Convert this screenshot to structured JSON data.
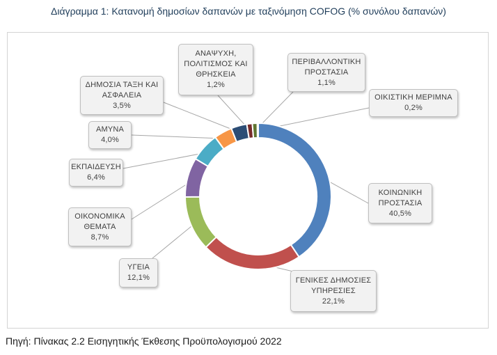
{
  "caption": "Διάγραμμα 1: Κατανομή δημοσίων δαπανών με ταξινόμηση COFOG (% συνόλου δαπανών)",
  "source": "Πηγή: Πίνακας 2.2 Εισηγητικής Έκθεσης Προϋπολογισμού 2022",
  "chart_data": {
    "type": "pie",
    "variant": "doughnut",
    "title": "",
    "legend": "none",
    "unit": "%",
    "slices": [
      {
        "name": "ΚΟΙΝΩΝΙΚΗ ΠΡΟΣΤΑΣΙΑ",
        "value": 40.5,
        "label": "40,5%",
        "color": "#4f81bd"
      },
      {
        "name": "ΓΕΝΙΚΕΣ ΔΗΜΟΣΙΕΣ ΥΠΗΡΕΣΙΕΣ",
        "value": 22.1,
        "label": "22,1%",
        "color": "#c0504d"
      },
      {
        "name": "ΥΓΕΙΑ",
        "value": 12.1,
        "label": "12,1%",
        "color": "#9bbb59"
      },
      {
        "name": "ΟΙΚΟΝΟΜΙΚΑ ΘΕΜΑΤΑ",
        "value": 8.7,
        "label": "8,7%",
        "color": "#8064a2"
      },
      {
        "name": "ΕΚΠΑΙΔΕΥΣΗ",
        "value": 6.4,
        "label": "6,4%",
        "color": "#4bacc6"
      },
      {
        "name": "ΑΜΥΝΑ",
        "value": 4.0,
        "label": "4,0%",
        "color": "#f79646"
      },
      {
        "name": "ΔΗΜΟΣΙΑ ΤΑΞΗ ΚΑΙ ΑΣΦΑΛΕΙΑ",
        "value": 3.5,
        "label": "3,5%",
        "color": "#2c4d75"
      },
      {
        "name": "ΑΝΑΨΥΧΗ, ΠΟΛΙΤΙΣΜΟΣ ΚΑΙ ΘΡΗΣΚΕΙΑ",
        "value": 1.2,
        "label": "1,2%",
        "color": "#772c2a"
      },
      {
        "name": "ΠΕΡΙΒΑΛΛΟΝΤΙΚΗ ΠΡΟΣΤΑΣΙΑ",
        "value": 1.1,
        "label": "1,1%",
        "color": "#5f7530"
      },
      {
        "name": "ΟΙΚΙΣΤΙΚΗ ΜΕΡΙΜΝΑ",
        "value": 0.2,
        "label": "0,2%",
        "color": "#4d3b62"
      }
    ]
  }
}
